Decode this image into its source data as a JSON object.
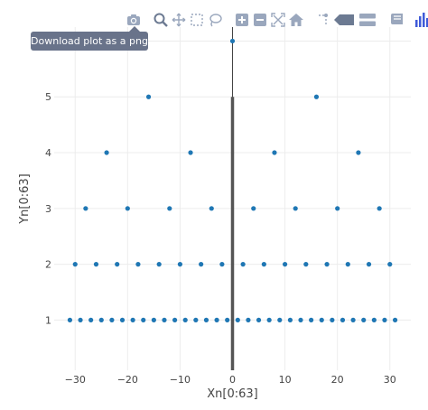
{
  "modebar": {
    "buttons": [
      {
        "name": "camera-icon"
      },
      {
        "name": "zoom-icon"
      },
      {
        "name": "pan-icon"
      },
      {
        "name": "box-select-icon"
      },
      {
        "name": "lasso-select-icon"
      },
      {
        "name": "zoom-in-icon"
      },
      {
        "name": "zoom-out-icon"
      },
      {
        "name": "autoscale-icon"
      },
      {
        "name": "home-icon"
      },
      {
        "name": "spike-lines-icon"
      },
      {
        "name": "hover-closest-icon"
      },
      {
        "name": "hover-compare-icon"
      },
      {
        "name": "edit-chart-icon"
      },
      {
        "name": "plotly-logo-icon"
      }
    ],
    "tooltip": "Download plot as a png",
    "icon_color": "#9aa7bd",
    "logo_color": "#3f5ad8"
  },
  "chart_data": {
    "type": "scatter",
    "title": "",
    "xlabel": "Xn[0:63]",
    "ylabel": "Yn[0:63]",
    "xlim": [
      -34,
      34
    ],
    "ylim": [
      0.1,
      6.25
    ],
    "xticks": [
      -30,
      -20,
      -10,
      0,
      10,
      20,
      30
    ],
    "xtick_labels": [
      "−30",
      "−20",
      "−10",
      "0",
      "10",
      "20",
      "30"
    ],
    "yticks": [
      1,
      2,
      3,
      4,
      5,
      6
    ],
    "ytick_labels": [
      "1",
      "2",
      "3",
      "4",
      "5",
      "6"
    ],
    "grid": true,
    "marker_color": "#1f77b4",
    "series": [
      {
        "points": [
          [
            -31,
            1
          ],
          [
            -29,
            1
          ],
          [
            -27,
            1
          ],
          [
            -25,
            1
          ],
          [
            -23,
            1
          ],
          [
            -21,
            1
          ],
          [
            -19,
            1
          ],
          [
            -17,
            1
          ],
          [
            -15,
            1
          ],
          [
            -13,
            1
          ],
          [
            -11,
            1
          ],
          [
            -9,
            1
          ],
          [
            -7,
            1
          ],
          [
            -5,
            1
          ],
          [
            -3,
            1
          ],
          [
            -1,
            1
          ],
          [
            1,
            1
          ],
          [
            3,
            1
          ],
          [
            5,
            1
          ],
          [
            7,
            1
          ],
          [
            9,
            1
          ],
          [
            11,
            1
          ],
          [
            13,
            1
          ],
          [
            15,
            1
          ],
          [
            17,
            1
          ],
          [
            19,
            1
          ],
          [
            21,
            1
          ],
          [
            23,
            1
          ],
          [
            25,
            1
          ],
          [
            27,
            1
          ],
          [
            29,
            1
          ],
          [
            31,
            1
          ],
          [
            -30,
            2
          ],
          [
            -26,
            2
          ],
          [
            -22,
            2
          ],
          [
            -18,
            2
          ],
          [
            -14,
            2
          ],
          [
            -10,
            2
          ],
          [
            -6,
            2
          ],
          [
            -2,
            2
          ],
          [
            2,
            2
          ],
          [
            6,
            2
          ],
          [
            10,
            2
          ],
          [
            14,
            2
          ],
          [
            18,
            2
          ],
          [
            22,
            2
          ],
          [
            26,
            2
          ],
          [
            30,
            2
          ],
          [
            -28,
            3
          ],
          [
            -20,
            3
          ],
          [
            -12,
            3
          ],
          [
            -4,
            3
          ],
          [
            4,
            3
          ],
          [
            12,
            3
          ],
          [
            20,
            3
          ],
          [
            28,
            3
          ],
          [
            -24,
            4
          ],
          [
            -8,
            4
          ],
          [
            8,
            4
          ],
          [
            24,
            4
          ],
          [
            -16,
            5
          ],
          [
            16,
            5
          ],
          [
            0,
            6
          ]
        ]
      }
    ],
    "vertical_line": {
      "x": 0,
      "y_from": 0.1,
      "y_to": 6.25,
      "color": "#444444"
    },
    "vertical_bar": {
      "x": 0,
      "y_from": 0.1,
      "y_to": 5,
      "color": "#555555"
    }
  }
}
